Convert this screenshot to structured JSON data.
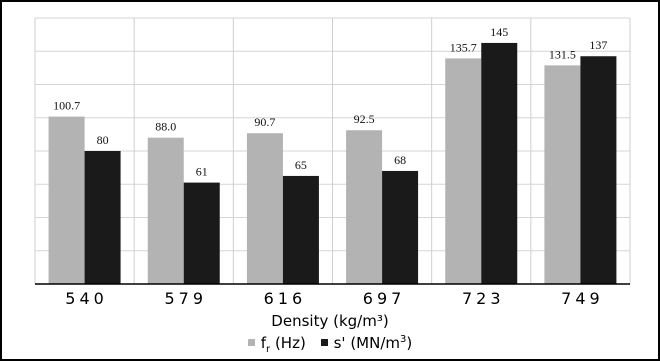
{
  "chart_data": {
    "type": "bar",
    "categories": [
      "540",
      "579",
      "616",
      "697",
      "723",
      "749"
    ],
    "series": [
      {
        "name": "f_r (Hz)",
        "color": "#b3b3b3",
        "values": [
          100.7,
          88.0,
          90.7,
          92.5,
          135.7,
          131.5
        ],
        "labels": [
          "100.7",
          "88.0",
          "90.7",
          "92.5",
          "135.7",
          "131.5"
        ]
      },
      {
        "name": "s' (MN/m^3)",
        "color": "#1a1a1a",
        "values": [
          80,
          61,
          65,
          68,
          145,
          137
        ],
        "labels": [
          "80",
          "61",
          "65",
          "68",
          "145",
          "137"
        ]
      }
    ],
    "xlabel": "Density (kg/m³)",
    "ylabel": "",
    "ylim": [
      0,
      160
    ],
    "grid": true,
    "legend": "bottom"
  },
  "legend": {
    "fr_main": "f",
    "fr_sub": "r",
    "fr_unit": "(Hz)",
    "s_main": "s'",
    "s_unit": "(MN/m",
    "s_sup": "3",
    "s_close": ")"
  }
}
